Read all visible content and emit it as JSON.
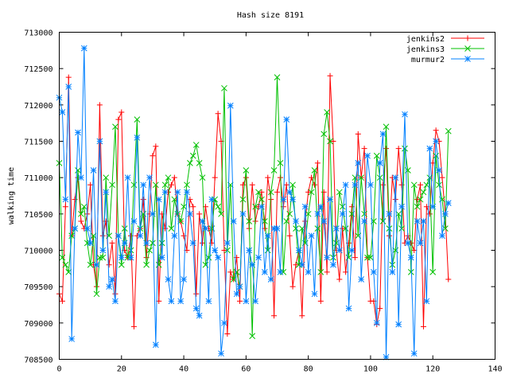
{
  "chart_data": {
    "type": "line",
    "title": "Hash size 8191",
    "xlabel": "",
    "ylabel": "walking time",
    "xlim": [
      0,
      140
    ],
    "ylim": [
      708500,
      713000
    ],
    "xticks": [
      0,
      20,
      40,
      60,
      80,
      100,
      120,
      140
    ],
    "yticks": [
      708500,
      709000,
      709500,
      710000,
      710500,
      711000,
      711500,
      712000,
      712500,
      713000
    ],
    "legend_position": "top-right",
    "series": [
      {
        "name": "jenkins2",
        "color": "#ff0000",
        "marker": "plus",
        "values": [
          709400,
          709300,
          710600,
          712380,
          710200,
          710700,
          711000,
          710400,
          710300,
          710500,
          710900,
          709800,
          709500,
          712000,
          710200,
          710400,
          709800,
          710100,
          709400,
          711800,
          711900,
          710000,
          709900,
          710200,
          708950,
          710200,
          710300,
          710700,
          709900,
          710500,
          711300,
          711430,
          709300,
          710500,
          710300,
          710800,
          710900,
          711000,
          710500,
          710400,
          710200,
          710000,
          710700,
          710600,
          709400,
          710500,
          710100,
          710600,
          710300,
          710100,
          711000,
          711880,
          711500,
          710000,
          708850,
          709700,
          709600,
          709900,
          709300,
          710900,
          711000,
          710300,
          710900,
          710400,
          710600,
          710800,
          710300,
          711000,
          710700,
          709100,
          710800,
          711000,
          710600,
          710900,
          710200,
          709500,
          709800,
          710000,
          709100,
          710400,
          710800,
          711000,
          710900,
          711200,
          709300,
          710800,
          709700,
          712400,
          711500,
          710000,
          709600,
          710300,
          709700,
          710100,
          710600,
          709900,
          711600,
          711000,
          711400,
          709900,
          709300,
          709300,
          708980,
          709200,
          710900,
          711400,
          710200,
          711000,
          710700,
          711400,
          710900,
          710100,
          710200,
          710100,
          710000,
          710700,
          710900,
          708950,
          710600,
          710500,
          711200,
          711650,
          711500,
          711000,
          710500,
          709600
        ]
      },
      {
        "name": "jenkins3",
        "color": "#00c000",
        "marker": "cross",
        "values": [
          711200,
          709900,
          709800,
          709700,
          710200,
          710300,
          711100,
          710500,
          710600,
          710100,
          709800,
          710200,
          709400,
          709900,
          709900,
          711000,
          710200,
          710900,
          711700,
          710200,
          709800,
          710300,
          709900,
          710000,
          710900,
          711800,
          710300,
          710500,
          709800,
          710000,
          710100,
          710900,
          709800,
          710100,
          710900,
          711000,
          710300,
          710700,
          710500,
          710400,
          710600,
          710900,
          711200,
          711300,
          711450,
          711200,
          711000,
          709800,
          709900,
          710300,
          710700,
          710600,
          710500,
          712230,
          710000,
          710900,
          709600,
          709700,
          709500,
          710700,
          711100,
          710400,
          708820,
          710600,
          710800,
          710700,
          710400,
          710000,
          710800,
          711100,
          712380,
          711200,
          709700,
          710400,
          710500,
          710900,
          710300,
          709800,
          710300,
          710100,
          710500,
          710800,
          711100,
          710300,
          709700,
          711600,
          711900,
          711500,
          709900,
          710100,
          710800,
          710600,
          710300,
          709900,
          710500,
          711000,
          710200,
          711000,
          710500,
          709900,
          709900,
          710400,
          711300,
          711000,
          710400,
          711700,
          710300,
          709800,
          710000,
          710500,
          710300,
          711400,
          711100,
          709700,
          710900,
          710600,
          710700,
          710800,
          710900,
          711000,
          709700,
          711300,
          710900,
          710700,
          710300,
          711640
        ]
      },
      {
        "name": "murmur2",
        "color": "#0080ff",
        "marker": "star",
        "values": [
          712100,
          711900,
          710700,
          712250,
          708780,
          710300,
          711620,
          711000,
          712780,
          710300,
          710100,
          711100,
          709800,
          711500,
          710000,
          710800,
          709500,
          709600,
          709300,
          710200,
          709900,
          710100,
          711000,
          709900,
          710400,
          711550,
          710200,
          710900,
          710100,
          711000,
          710500,
          708700,
          710700,
          709900,
          710800,
          709600,
          709300,
          710200,
          710800,
          709300,
          709600,
          710800,
          710500,
          710100,
          709200,
          709100,
          710400,
          710300,
          709300,
          710700,
          710000,
          709900,
          708580,
          709000,
          710100,
          711990,
          710400,
          709400,
          709500,
          710500,
          709300,
          710000,
          709800,
          709300,
          709900,
          710600,
          709700,
          710200,
          709600,
          710300,
          710300,
          709700,
          710700,
          711800,
          710800,
          710700,
          710400,
          710000,
          709800,
          710600,
          709700,
          710200,
          709400,
          710500,
          710600,
          710400,
          709900,
          710700,
          709800,
          710300,
          710000,
          710500,
          710900,
          709200,
          710000,
          710900,
          711200,
          709600,
          710400,
          711300,
          710900,
          709700,
          709000,
          711200,
          711600,
          708530,
          710500,
          709700,
          711000,
          708980,
          710600,
          711870,
          710100,
          709900,
          708580,
          710400,
          710100,
          710400,
          709300,
          711400,
          710600,
          711500,
          711100,
          710200,
          710500,
          710650
        ]
      }
    ]
  }
}
